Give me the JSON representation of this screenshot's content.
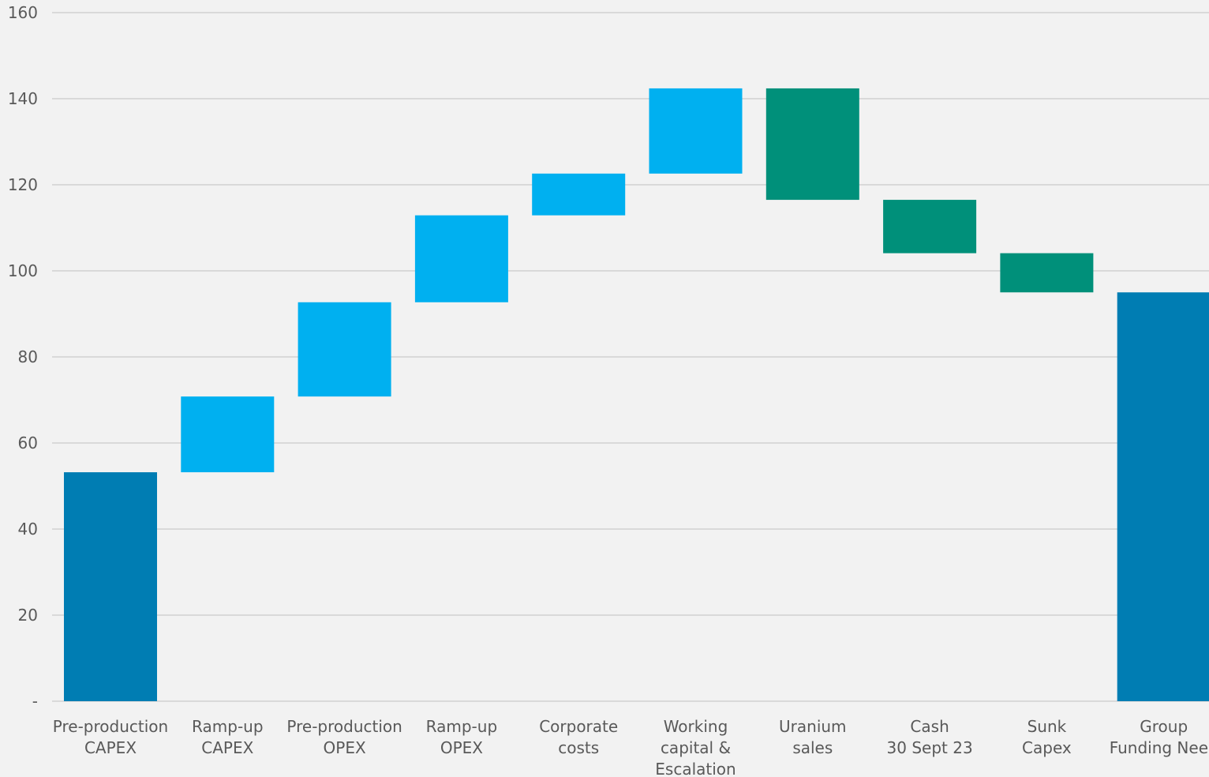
{
  "chart_data": {
    "type": "bar",
    "subtype": "waterfall",
    "title": "",
    "xlabel": "",
    "ylabel": "",
    "ylim": [
      0,
      160
    ],
    "yticks": [
      {
        "value": 0,
        "label": "-"
      },
      {
        "value": 20,
        "label": "20"
      },
      {
        "value": 40,
        "label": "40"
      },
      {
        "value": 60,
        "label": "60"
      },
      {
        "value": 80,
        "label": "80"
      },
      {
        "value": 100,
        "label": "100"
      },
      {
        "value": 120,
        "label": "120"
      },
      {
        "value": 140,
        "label": "140"
      },
      {
        "value": 160,
        "label": "160"
      }
    ],
    "grid": true,
    "legend": "none",
    "categories": [
      {
        "lines": [
          "Pre-production",
          "CAPEX"
        ]
      },
      {
        "lines": [
          "Ramp-up",
          "CAPEX"
        ]
      },
      {
        "lines": [
          "Pre-production",
          "OPEX"
        ]
      },
      {
        "lines": [
          "Ramp-up",
          "OPEX"
        ]
      },
      {
        "lines": [
          "Corporate",
          "costs"
        ]
      },
      {
        "lines": [
          "Working",
          "capital &",
          "Escalation"
        ]
      },
      {
        "lines": [
          "Uranium",
          "sales"
        ]
      },
      {
        "lines": [
          "Cash",
          "30 Sept 23"
        ]
      },
      {
        "lines": [
          "Sunk",
          "Capex"
        ]
      },
      {
        "lines": [
          "Group",
          "Funding Need"
        ]
      }
    ],
    "bars": [
      {
        "start": 0,
        "end": 53.2,
        "kind": "total"
      },
      {
        "start": 53.2,
        "end": 70.8,
        "kind": "increase"
      },
      {
        "start": 70.8,
        "end": 92.7,
        "kind": "increase"
      },
      {
        "start": 92.7,
        "end": 112.9,
        "kind": "increase"
      },
      {
        "start": 112.9,
        "end": 122.6,
        "kind": "increase"
      },
      {
        "start": 122.6,
        "end": 142.4,
        "kind": "increase"
      },
      {
        "start": 142.4,
        "end": 116.5,
        "kind": "decrease"
      },
      {
        "start": 116.5,
        "end": 104.1,
        "kind": "decrease"
      },
      {
        "start": 104.1,
        "end": 95.0,
        "kind": "decrease"
      },
      {
        "start": 0,
        "end": 95.0,
        "kind": "total"
      }
    ],
    "colors": {
      "total": "#007db3",
      "increase": "#00b0f0",
      "decrease": "#00907a"
    }
  }
}
